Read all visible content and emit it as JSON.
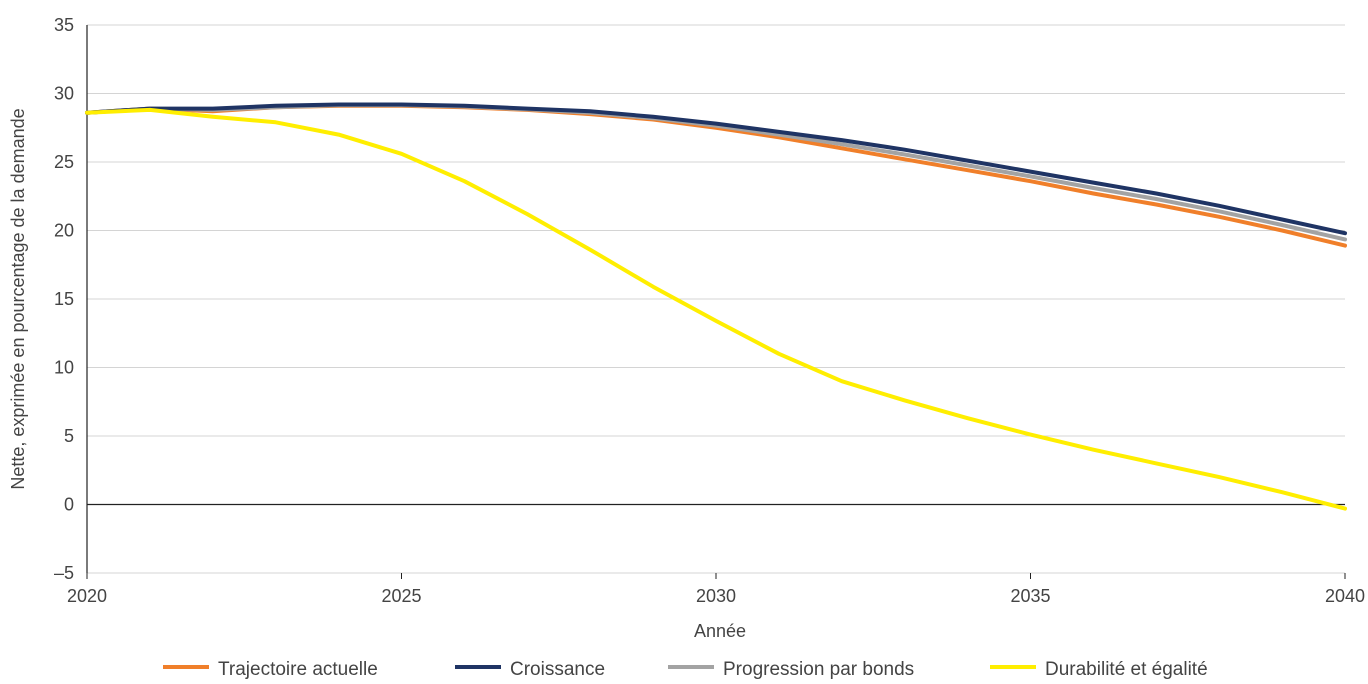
{
  "chart_data": {
    "type": "line",
    "title": "",
    "xlabel": "Année",
    "ylabel": "Nette, exprimée en pourcentage de la demande",
    "xlim": [
      2020,
      2040
    ],
    "ylim": [
      -5,
      35
    ],
    "x_ticks": [
      "2020",
      "2025",
      "2030",
      "2035",
      "2040"
    ],
    "y_ticks": [
      "35",
      "30",
      "25",
      "20",
      "15",
      "10",
      "5",
      "0",
      "–5"
    ],
    "grid": true,
    "legend_position": "bottom",
    "x": [
      2020,
      2021,
      2022,
      2023,
      2024,
      2025,
      2026,
      2027,
      2028,
      2029,
      2030,
      2031,
      2032,
      2033,
      2034,
      2035,
      2036,
      2037,
      2038,
      2039,
      2040
    ],
    "series": [
      {
        "name": "Trajectoire actuelle",
        "color": "#f07f2a",
        "values": [
          28.6,
          28.9,
          28.7,
          29.0,
          29.1,
          29.1,
          29.0,
          28.8,
          28.5,
          28.1,
          27.5,
          26.8,
          26.0,
          25.2,
          24.4,
          23.6,
          22.7,
          21.9,
          21.0,
          20.0,
          18.9
        ]
      },
      {
        "name": "Croissance",
        "color": "#1f3464",
        "values": [
          28.6,
          28.9,
          28.9,
          29.1,
          29.2,
          29.2,
          29.1,
          28.9,
          28.7,
          28.3,
          27.8,
          27.2,
          26.6,
          25.9,
          25.1,
          24.3,
          23.5,
          22.7,
          21.8,
          20.8,
          19.8
        ]
      },
      {
        "name": "Progression par bonds",
        "color": "#a3a3a3",
        "values": [
          28.6,
          28.9,
          28.8,
          29.0,
          29.15,
          29.15,
          29.05,
          28.85,
          28.6,
          28.2,
          27.65,
          27.0,
          26.3,
          25.55,
          24.75,
          23.95,
          23.1,
          22.3,
          21.4,
          20.4,
          19.35
        ]
      },
      {
        "name": "Durabilité et égalité",
        "color": "#ffee00",
        "values": [
          28.6,
          28.8,
          28.3,
          27.9,
          27.0,
          25.6,
          23.6,
          21.2,
          18.6,
          15.9,
          13.4,
          11.0,
          9.0,
          7.6,
          6.3,
          5.1,
          4.0,
          3.0,
          2.0,
          0.9,
          -0.3
        ]
      }
    ]
  }
}
